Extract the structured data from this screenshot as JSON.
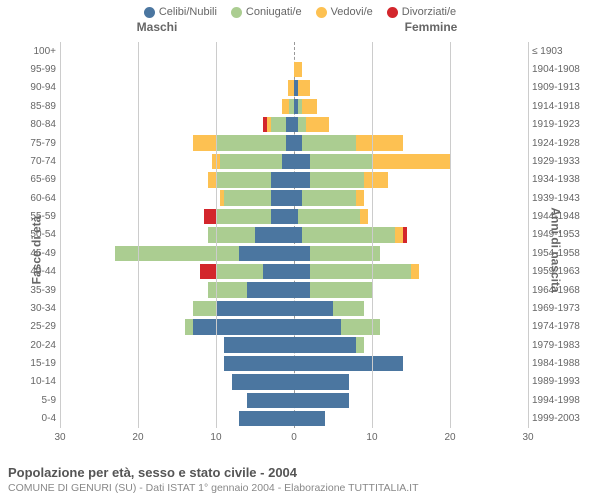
{
  "chart": {
    "type": "population-pyramid",
    "colors": {
      "single": "#4b76a0",
      "married": "#abcd91",
      "widowed": "#fdc152",
      "divorced": "#d3262c",
      "grid": "#cccccc",
      "axis": "#999999",
      "text": "#666666",
      "background": "#ffffff"
    },
    "legend": [
      {
        "key": "single",
        "label": "Celibi/Nubili"
      },
      {
        "key": "married",
        "label": "Coniugati/e"
      },
      {
        "key": "widowed",
        "label": "Vedovi/e"
      },
      {
        "key": "divorced",
        "label": "Divorziati/e"
      }
    ],
    "headers": {
      "male": "Maschi",
      "female": "Femmine"
    },
    "axis_labels": {
      "left": "Fasce di età",
      "right": "Anni di nascita"
    },
    "x_max": 30,
    "x_ticks": [
      30,
      20,
      10,
      0,
      10,
      20,
      30
    ],
    "rows": [
      {
        "age": "100+",
        "birth": "≤ 1903",
        "m": {
          "single": 0,
          "married": 0,
          "widowed": 0,
          "divorced": 0
        },
        "f": {
          "single": 0,
          "married": 0,
          "widowed": 0,
          "divorced": 0
        }
      },
      {
        "age": "95-99",
        "birth": "1904-1908",
        "m": {
          "single": 0,
          "married": 0,
          "widowed": 0,
          "divorced": 0
        },
        "f": {
          "single": 0,
          "married": 0,
          "widowed": 1,
          "divorced": 0
        }
      },
      {
        "age": "90-94",
        "birth": "1909-1913",
        "m": {
          "single": 0,
          "married": 0,
          "widowed": 0.8,
          "divorced": 0
        },
        "f": {
          "single": 0.5,
          "married": 0,
          "widowed": 1.5,
          "divorced": 0
        }
      },
      {
        "age": "85-89",
        "birth": "1914-1918",
        "m": {
          "single": 0,
          "married": 0.7,
          "widowed": 0.8,
          "divorced": 0
        },
        "f": {
          "single": 0.5,
          "married": 0.5,
          "widowed": 2,
          "divorced": 0
        }
      },
      {
        "age": "80-84",
        "birth": "1919-1923",
        "m": {
          "single": 1,
          "married": 2,
          "widowed": 0.5,
          "divorced": 0.5
        },
        "f": {
          "single": 0.5,
          "married": 1,
          "widowed": 3,
          "divorced": 0
        }
      },
      {
        "age": "75-79",
        "birth": "1924-1928",
        "m": {
          "single": 1,
          "married": 9,
          "widowed": 3,
          "divorced": 0
        },
        "f": {
          "single": 1,
          "married": 7,
          "widowed": 6,
          "divorced": 0
        }
      },
      {
        "age": "70-74",
        "birth": "1929-1933",
        "m": {
          "single": 1.5,
          "married": 8,
          "widowed": 1,
          "divorced": 0
        },
        "f": {
          "single": 2,
          "married": 8,
          "widowed": 10,
          "divorced": 0
        }
      },
      {
        "age": "65-69",
        "birth": "1934-1938",
        "m": {
          "single": 3,
          "married": 7,
          "widowed": 1,
          "divorced": 0
        },
        "f": {
          "single": 2,
          "married": 7,
          "widowed": 3,
          "divorced": 0
        }
      },
      {
        "age": "60-64",
        "birth": "1939-1943",
        "m": {
          "single": 3,
          "married": 6,
          "widowed": 0.5,
          "divorced": 0
        },
        "f": {
          "single": 1,
          "married": 7,
          "widowed": 1,
          "divorced": 0
        }
      },
      {
        "age": "55-59",
        "birth": "1944-1948",
        "m": {
          "single": 3,
          "married": 7,
          "widowed": 0,
          "divorced": 1.5
        },
        "f": {
          "single": 0.5,
          "married": 8,
          "widowed": 1,
          "divorced": 0
        }
      },
      {
        "age": "50-54",
        "birth": "1949-1953",
        "m": {
          "single": 5,
          "married": 6,
          "widowed": 0,
          "divorced": 0
        },
        "f": {
          "single": 1,
          "married": 12,
          "widowed": 1,
          "divorced": 0.5
        }
      },
      {
        "age": "45-49",
        "birth": "1954-1958",
        "m": {
          "single": 7,
          "married": 16,
          "widowed": 0,
          "divorced": 0
        },
        "f": {
          "single": 2,
          "married": 9,
          "widowed": 0,
          "divorced": 0
        }
      },
      {
        "age": "40-44",
        "birth": "1959-1963",
        "m": {
          "single": 4,
          "married": 6,
          "widowed": 0,
          "divorced": 2
        },
        "f": {
          "single": 2,
          "married": 13,
          "widowed": 1,
          "divorced": 0
        }
      },
      {
        "age": "35-39",
        "birth": "1964-1968",
        "m": {
          "single": 6,
          "married": 5,
          "widowed": 0,
          "divorced": 0
        },
        "f": {
          "single": 2,
          "married": 8,
          "widowed": 0,
          "divorced": 0
        }
      },
      {
        "age": "30-34",
        "birth": "1969-1973",
        "m": {
          "single": 10,
          "married": 3,
          "widowed": 0,
          "divorced": 0
        },
        "f": {
          "single": 5,
          "married": 4,
          "widowed": 0,
          "divorced": 0
        }
      },
      {
        "age": "25-29",
        "birth": "1974-1978",
        "m": {
          "single": 13,
          "married": 1,
          "widowed": 0,
          "divorced": 0
        },
        "f": {
          "single": 6,
          "married": 5,
          "widowed": 0,
          "divorced": 0
        }
      },
      {
        "age": "20-24",
        "birth": "1979-1983",
        "m": {
          "single": 9,
          "married": 0,
          "widowed": 0,
          "divorced": 0
        },
        "f": {
          "single": 8,
          "married": 1,
          "widowed": 0,
          "divorced": 0
        }
      },
      {
        "age": "15-19",
        "birth": "1984-1988",
        "m": {
          "single": 9,
          "married": 0,
          "widowed": 0,
          "divorced": 0
        },
        "f": {
          "single": 14,
          "married": 0,
          "widowed": 0,
          "divorced": 0
        }
      },
      {
        "age": "10-14",
        "birth": "1989-1993",
        "m": {
          "single": 8,
          "married": 0,
          "widowed": 0,
          "divorced": 0
        },
        "f": {
          "single": 7,
          "married": 0,
          "widowed": 0,
          "divorced": 0
        }
      },
      {
        "age": "5-9",
        "birth": "1994-1998",
        "m": {
          "single": 6,
          "married": 0,
          "widowed": 0,
          "divorced": 0
        },
        "f": {
          "single": 7,
          "married": 0,
          "widowed": 0,
          "divorced": 0
        }
      },
      {
        "age": "0-4",
        "birth": "1999-2003",
        "m": {
          "single": 7,
          "married": 0,
          "widowed": 0,
          "divorced": 0
        },
        "f": {
          "single": 4,
          "married": 0,
          "widowed": 0,
          "divorced": 0
        }
      }
    ],
    "title": "Popolazione per età, sesso e stato civile - 2004",
    "subtitle": "COMUNE DI GENURI (SU) - Dati ISTAT 1° gennaio 2004 - Elaborazione TUTTITALIA.IT"
  }
}
